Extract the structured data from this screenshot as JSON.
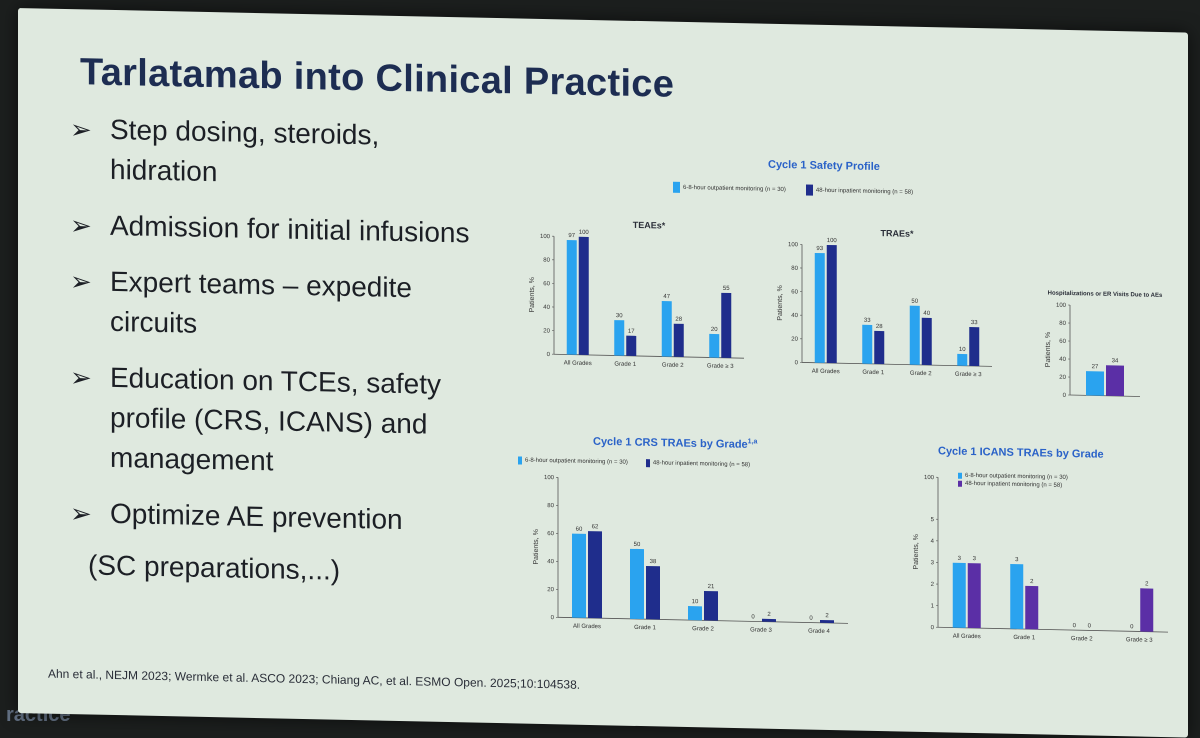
{
  "slide": {
    "title": "Tarlatamab into Clinical Practice",
    "bullets": [
      "Step dosing, steroids, hidration",
      "Admission for initial infusions",
      "Expert teams – expedite circuits",
      "Education on TCEs, safety profile (CRS, ICANS) and management",
      "Optimize AE prevention"
    ],
    "bullet_continuation": "(SC preparations,...)",
    "arrow_glyph": "➢",
    "footer": "Ahn et al., NEJM 2023; Wermke et al. ASCO 2023;   Chiang AC, et al. ESMO Open. 2025;10:104538.",
    "bottom_fragment": "ractice"
  },
  "colors": {
    "outpatient": "#2aa3ef",
    "inpatient": "#1f2d8c",
    "inpatient_icans": "#5b2fa6",
    "heading": "#1d2d52",
    "chart_title": "#2a62c8"
  },
  "section": {
    "safety_title": "Cycle 1 Safety Profile",
    "crs_title": "Cycle 1 CRS TRAEs by Grade",
    "crs_sup": "1,a",
    "icans_title": "Cycle 1 ICANS TRAEs by Grade",
    "legend_outpatient": "6-8-hour outpatient monitoring (n = 30)",
    "legend_inpatient": "48-hour inpatient monitoring (n = 58)"
  },
  "chart_data": [
    {
      "type": "bar",
      "title": "TEAEs*",
      "ylabel": "Patients, %",
      "ylim": [
        0,
        100
      ],
      "yticks": [
        0,
        20,
        40,
        60,
        80,
        100
      ],
      "categories": [
        "All Grades",
        "Grade 1",
        "Grade 2",
        "Grade ≥ 3"
      ],
      "series": [
        {
          "name": "6-8-hour outpatient monitoring (n = 30)",
          "color": "#2aa3ef",
          "values": [
            97,
            30,
            47,
            20
          ],
          "labels": [
            "97",
            "30",
            "47",
            "20"
          ]
        },
        {
          "name": "48-hour inpatient monitoring (n = 58)",
          "color": "#1f2d8c",
          "values": [
            100,
            17,
            28,
            55
          ],
          "labels": [
            "100",
            "17",
            "28",
            "55"
          ]
        }
      ]
    },
    {
      "type": "bar",
      "title": "TRAEs*",
      "ylabel": "Patients, %",
      "ylim": [
        0,
        100
      ],
      "yticks": [
        0,
        20,
        40,
        60,
        80,
        100
      ],
      "categories": [
        "All Grades",
        "Grade 1",
        "Grade 2",
        "Grade ≥ 3"
      ],
      "series": [
        {
          "name": "6-8-hour outpatient monitoring (n = 30)",
          "color": "#2aa3ef",
          "values": [
            93,
            33,
            50,
            10
          ],
          "labels": [
            "93",
            "33",
            "50",
            "10"
          ]
        },
        {
          "name": "48-hour inpatient monitoring (n = 58)",
          "color": "#1f2d8c",
          "values": [
            100,
            28,
            40,
            33
          ],
          "labels": [
            "100",
            "28",
            "40",
            "33"
          ]
        }
      ]
    },
    {
      "type": "bar",
      "title": "Hospitalizations or ER Visits Due to AEs",
      "ylabel": "Patients, %",
      "ylim": [
        0,
        100
      ],
      "yticks": [
        0,
        20,
        40,
        60,
        80,
        100
      ],
      "categories": [
        ""
      ],
      "series": [
        {
          "name": "6-8-hour outpatient monitoring (n = 30)",
          "color": "#2aa3ef",
          "values": [
            27
          ],
          "labels": [
            "27"
          ]
        },
        {
          "name": "48-hour inpatient monitoring (n = 58)",
          "color": "#5b2fa6",
          "values": [
            34
          ],
          "labels": [
            "34"
          ]
        }
      ]
    },
    {
      "type": "bar",
      "title": "Cycle 1 CRS TRAEs by Grade",
      "ylabel": "Patients, %",
      "ylim": [
        0,
        100
      ],
      "yticks": [
        0,
        20,
        40,
        60,
        80,
        100
      ],
      "categories": [
        "All Grades",
        "Grade 1",
        "Grade 2",
        "Grade 3",
        "Grade 4"
      ],
      "series": [
        {
          "name": "6-8-hour outpatient monitoring (n = 30)",
          "color": "#2aa3ef",
          "values": [
            60,
            50,
            10,
            0,
            0
          ],
          "labels": [
            "60",
            "50",
            "10",
            "0",
            "0"
          ]
        },
        {
          "name": "48-hour inpatient monitoring (n = 58)",
          "color": "#1f2d8c",
          "values": [
            62,
            38,
            21,
            2,
            2
          ],
          "labels": [
            "62",
            "38",
            "21",
            "2",
            "2"
          ]
        }
      ]
    },
    {
      "type": "bar",
      "title": "Cycle 1 ICANS TRAEs by Grade",
      "ylabel": "Patients, %",
      "ylim": [
        0,
        100
      ],
      "yticks": [
        0,
        1,
        2,
        3,
        4,
        5,
        100
      ],
      "categories": [
        "All Grades",
        "Grade 1",
        "Grade 2",
        "Grade ≥ 3"
      ],
      "series": [
        {
          "name": "6-8-hour outpatient monitoring (n = 30)",
          "color": "#2aa3ef",
          "values": [
            3,
            3,
            0,
            0
          ],
          "labels": [
            "3",
            "3",
            "0",
            "0"
          ]
        },
        {
          "name": "48-hour inpatient monitoring (n = 58)",
          "color": "#5b2fa6",
          "values": [
            3,
            2,
            0,
            2
          ],
          "labels": [
            "3",
            "2",
            "0",
            "2"
          ]
        }
      ]
    }
  ]
}
